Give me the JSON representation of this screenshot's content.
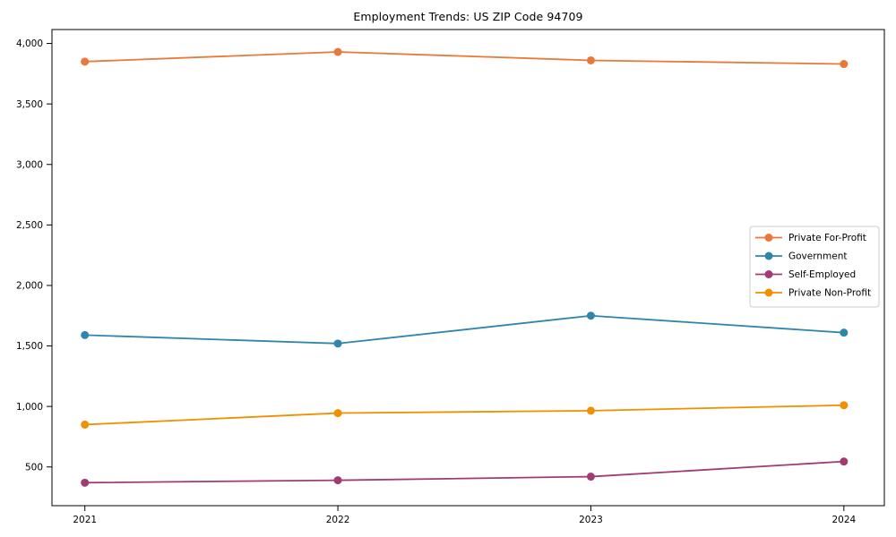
{
  "figure": {
    "title": "Employment Trends: US ZIP Code 94709"
  },
  "chart_data": {
    "type": "line",
    "title": "Employment Trends: US ZIP Code 94709",
    "x": [
      2021,
      2022,
      2023,
      2024
    ],
    "x_tick_labels": [
      "2021",
      "2022",
      "2023",
      "2024"
    ],
    "series": [
      {
        "name": "Private For-Profit",
        "color": "#E8793A",
        "values": [
          3850,
          3930,
          3860,
          3830
        ]
      },
      {
        "name": "Government",
        "color": "#2E86AB",
        "values": [
          1590,
          1520,
          1750,
          1610
        ]
      },
      {
        "name": "Self-Employed",
        "color": "#A23B72",
        "values": [
          370,
          390,
          420,
          545
        ]
      },
      {
        "name": "Private Non-Profit",
        "color": "#F18F01",
        "values": [
          850,
          945,
          965,
          1010
        ]
      }
    ],
    "xlabel": "",
    "ylabel": "",
    "yticks": [
      500,
      1000,
      1500,
      2000,
      2500,
      3000,
      3500,
      4000
    ],
    "ylim": [
      180,
      4115
    ],
    "xlim": [
      2020.87,
      2024.16
    ],
    "grid": false,
    "marker": "circle",
    "legend": {
      "position": "center-right"
    }
  }
}
